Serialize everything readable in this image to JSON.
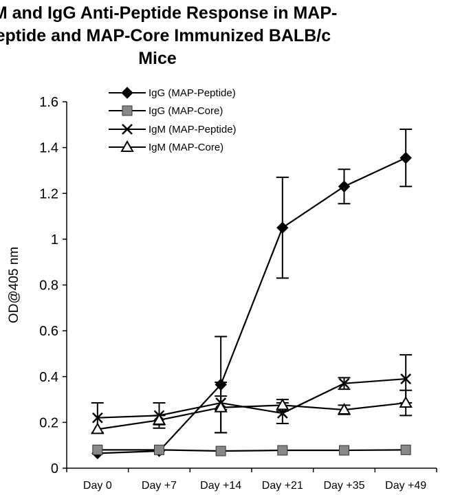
{
  "chart_data": {
    "type": "line",
    "title_lines": [
      "IgM and IgG Anti-Peptide Response in MAP-",
      "Peptide and MAP-Core Immunized BALB/c",
      "Mice"
    ],
    "xlabel": "",
    "ylabel": "OD@405 nm",
    "categories": [
      "Day 0",
      "Day +7",
      "Day +14",
      "Day +21",
      "Day +35",
      "Day +49"
    ],
    "ylim": [
      0,
      1.6
    ],
    "y_ticks": [
      0,
      0.2,
      0.4,
      0.6,
      0.8,
      1,
      1.2,
      1.4,
      1.6
    ],
    "y_tick_labels": [
      "0",
      "0.2",
      "0.4",
      "0.6",
      "0.8",
      "1",
      "1.2",
      "1.4",
      "1.6"
    ],
    "grid": false,
    "legend_position": "top-left inside plot",
    "series": [
      {
        "name": "IgG (MAP-Peptide)",
        "marker": "diamond",
        "color": "#000000",
        "values": [
          0.065,
          0.075,
          0.365,
          1.05,
          1.23,
          1.355
        ],
        "error": [
          0.0,
          0.0,
          0.21,
          0.22,
          0.075,
          0.125
        ]
      },
      {
        "name": "IgG (MAP-Core)",
        "marker": "square",
        "color": "#888888",
        "values": [
          0.08,
          0.08,
          0.075,
          0.078,
          0.078,
          0.08
        ],
        "error": [
          0,
          0,
          0,
          0,
          0,
          0
        ]
      },
      {
        "name": "IgM (MAP-Peptide)",
        "marker": "x",
        "color": "#000000",
        "values": [
          0.22,
          0.23,
          0.285,
          0.24,
          0.37,
          0.39
        ],
        "error": [
          0.065,
          0.055,
          0.03,
          0.045,
          0.025,
          0.105
        ]
      },
      {
        "name": "IgM (MAP-Core)",
        "marker": "triangle",
        "color": "#000000",
        "values": [
          0.17,
          0.21,
          0.265,
          0.275,
          0.255,
          0.285
        ],
        "error": [
          0.0,
          0.02,
          0.11,
          0.025,
          0.02,
          0.055
        ]
      }
    ]
  }
}
